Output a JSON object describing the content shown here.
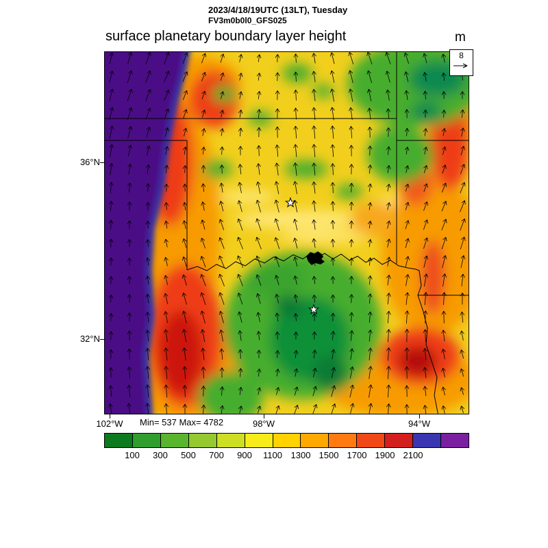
{
  "header": {
    "datetime_line": "2023/4/18/19UTC (13LT), Tuesday",
    "model_line": "FV3m0b0l0_GFS025",
    "title": "surface planetary boundary layer height",
    "units": "m"
  },
  "vector_legend": {
    "reference_value": "8"
  },
  "stats_line": "Min= 537 Max= 4782",
  "axes": {
    "lat_ticks": [
      "36°N",
      "32°N"
    ],
    "lon_ticks": [
      "102°W",
      "98°W",
      "94°W"
    ]
  },
  "chart_data": {
    "type": "heatmap",
    "title": "surface planetary boundary layer height",
    "subtitle_lines": [
      "2023/4/18/19UTC (13LT), Tuesday",
      "FV3m0b0l0_GFS025"
    ],
    "units": "m",
    "field_min": 537,
    "field_max": 4782,
    "wind_reference_vector": "8",
    "x_axis": {
      "kind": "longitude",
      "ticks": [
        "102°W",
        "98°W",
        "94°W"
      ]
    },
    "y_axis": {
      "kind": "latitude",
      "ticks": [
        "36°N",
        "32°N"
      ]
    },
    "colorbar": {
      "tick_labels": [
        "100",
        "300",
        "500",
        "700",
        "900",
        "1100",
        "1300",
        "1500",
        "1700",
        "1900",
        "2100"
      ],
      "segment_colors": [
        "#0c7a1e",
        "#2f9e2d",
        "#5ab52e",
        "#95c92f",
        "#cede24",
        "#f6ec1a",
        "#ffd200",
        "#ffa800",
        "#ff7a10",
        "#f04816",
        "#d41f1f",
        "#3a35b0",
        "#7a1fa0"
      ]
    },
    "overlays": [
      "state-borders",
      "wind-vector-arrows",
      "two-star-markers",
      "lake-outline"
    ],
    "arrow_grid": {
      "cols": 20,
      "rows": 20
    }
  }
}
